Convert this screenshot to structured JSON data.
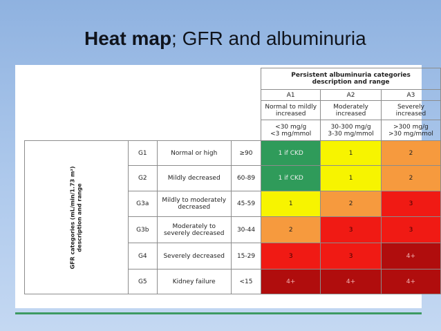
{
  "slide": {
    "title_bold": "Heat map",
    "title_rest": "; GFR and albuminuria"
  },
  "table": {
    "header_title_line1": "Persistent albuminuria categories",
    "header_title_line2": "description and range",
    "left_title_line1": "GFR categories (mL/min/1.73 m²)",
    "left_title_line2": "description and range",
    "albuminuria": [
      {
        "code": "A1",
        "desc_line1": "Normal to mildly",
        "desc_line2": "increased",
        "range_line1": "<30 mg/g",
        "range_line2": "<3 mg/mmol"
      },
      {
        "code": "A2",
        "desc_line1": "Moderately",
        "desc_line2": "increased",
        "range_line1": "30-300 mg/g",
        "range_line2": "3-30 mg/mmol"
      },
      {
        "code": "A3",
        "desc_line1": "Severely",
        "desc_line2": "increased",
        "range_line1": ">300 mg/g",
        "range_line2": ">30 mg/mmol"
      }
    ],
    "rows": [
      {
        "code": "G1",
        "desc_line1": "Normal or high",
        "desc_line2": "",
        "range": "≥90",
        "cells": [
          "1 if CKD",
          "1",
          "2"
        ]
      },
      {
        "code": "G2",
        "desc_line1": "Mildly decreased",
        "desc_line2": "",
        "range": "60-89",
        "cells": [
          "1 if CKD",
          "1",
          "2"
        ]
      },
      {
        "code": "G3a",
        "desc_line1": "Mildly to moderately",
        "desc_line2": "decreased",
        "range": "45-59",
        "cells": [
          "1",
          "2",
          "3"
        ]
      },
      {
        "code": "G3b",
        "desc_line1": "Moderately to",
        "desc_line2": "severely decreased",
        "range": "30-44",
        "cells": [
          "2",
          "3",
          "3"
        ]
      },
      {
        "code": "G4",
        "desc_line1": "Severely decreased",
        "desc_line2": "",
        "range": "15-29",
        "cells": [
          "3",
          "3",
          "4+"
        ]
      },
      {
        "code": "G5",
        "desc_line1": "Kidney failure",
        "desc_line2": "",
        "range": "<15",
        "cells": [
          "4+",
          "4+",
          "4+"
        ]
      }
    ],
    "colors": {
      "green": "#2f9b5a",
      "yellow": "#f7f400",
      "orange": "#f69a3e",
      "red": "#f01a14",
      "dark_red": "#b00d0d"
    }
  }
}
